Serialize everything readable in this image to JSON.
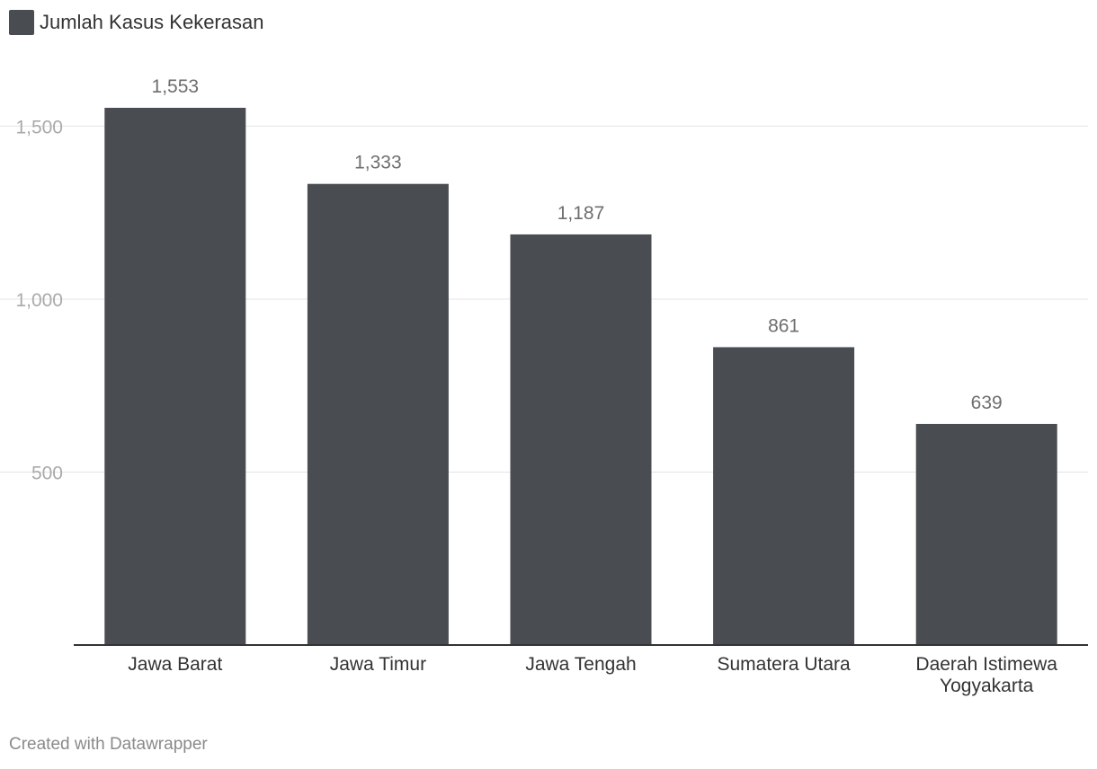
{
  "legend": {
    "label": "Jumlah Kasus Kekerasan"
  },
  "footer": {
    "credit": "Created with Datawrapper"
  },
  "colors": {
    "bar": "#494c50",
    "grid": "#e4e4e4",
    "axis": "#333333",
    "tick_label": "#aaaaaa",
    "value_label": "#6e6e6e",
    "category_label": "#333333"
  },
  "chart_data": {
    "type": "bar",
    "categories": [
      [
        "Jawa Barat"
      ],
      [
        "Jawa Timur"
      ],
      [
        "Jawa Tengah"
      ],
      [
        "Sumatera Utara"
      ],
      [
        "Daerah Istimewa",
        "Yogyakarta"
      ]
    ],
    "series": [
      {
        "name": "Jumlah Kasus Kekerasan",
        "values": [
          1553,
          1333,
          1187,
          861,
          639
        ],
        "value_labels": [
          "1,553",
          "1,333",
          "1,187",
          "861",
          "639"
        ]
      }
    ],
    "ylim": [
      0,
      1553
    ],
    "yticks": [
      500,
      1000,
      1500
    ],
    "ytick_labels": [
      "500",
      "1,000",
      "1,500"
    ],
    "grid": true,
    "legend_position": "top-left"
  }
}
